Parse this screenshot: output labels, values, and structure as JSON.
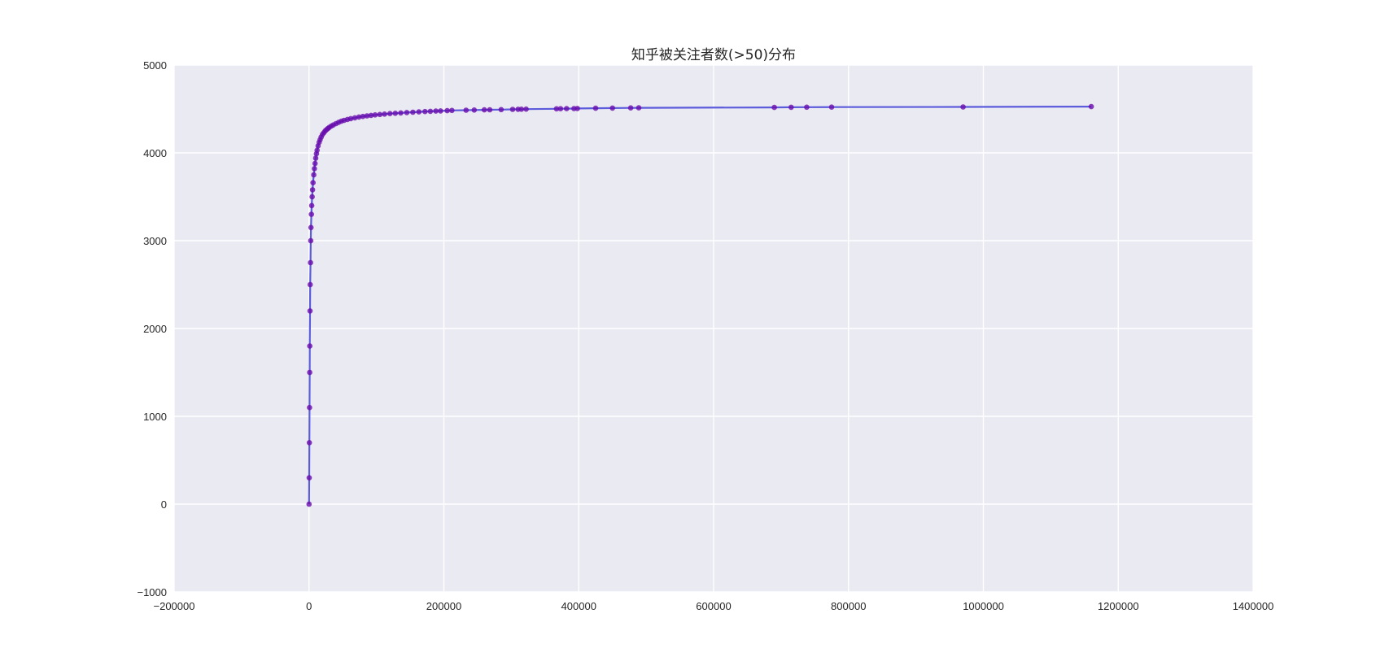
{
  "chart_data": {
    "type": "line",
    "title": "知乎被关注者数(>50)分布",
    "xlabel": "",
    "ylabel": "",
    "xlim": [
      -200000,
      1400000
    ],
    "ylim": [
      -1000,
      5000
    ],
    "x_ticks": [
      -200000,
      0,
      200000,
      400000,
      600000,
      800000,
      1000000,
      1200000,
      1400000
    ],
    "y_ticks": [
      -1000,
      0,
      1000,
      2000,
      3000,
      4000,
      5000
    ],
    "x_tick_labels": [
      "−200000",
      "0",
      "200000",
      "400000",
      "600000",
      "800000",
      "1000000",
      "1200000",
      "1400000"
    ],
    "y_tick_labels": [
      "−1000",
      "0",
      "1000",
      "2000",
      "3000",
      "4000",
      "5000"
    ],
    "grid": true,
    "background": "#eaeaf2",
    "grid_color": "#ffffff",
    "line_color": "#5b5bdc",
    "marker_color": "#6a0dad",
    "series": [
      {
        "x": [
          50,
          300,
          600,
          800,
          1000,
          1200,
          1500,
          1800,
          2200,
          2600,
          3000,
          3500,
          4000,
          4600,
          5300,
          6000,
          7000,
          8000,
          9000,
          10000,
          11000,
          12000,
          13500,
          15000,
          16500,
          18000,
          20000,
          22000,
          24000,
          26000,
          28000,
          30000,
          33000,
          36000,
          40000,
          44000,
          48000,
          52000,
          57000,
          62000,
          68000,
          74000,
          80000,
          86000,
          92000,
          98000,
          105000,
          112000,
          120000,
          128000,
          136000,
          145000,
          154000,
          163000,
          172000,
          180000,
          188000,
          195000,
          205000,
          212000,
          233000,
          245000,
          260000,
          268000,
          285000,
          302000,
          310000,
          315000,
          322000,
          367000,
          373000,
          382000,
          393000,
          398000,
          425000,
          450000,
          477000,
          489000,
          690000,
          715000,
          738000,
          775000,
          970000,
          1160000
        ],
        "y": [
          0,
          300,
          700,
          1100,
          1500,
          1800,
          2200,
          2500,
          2750,
          3000,
          3150,
          3300,
          3400,
          3500,
          3580,
          3660,
          3750,
          3820,
          3880,
          3940,
          3990,
          4030,
          4080,
          4120,
          4150,
          4180,
          4210,
          4230,
          4250,
          4265,
          4278,
          4290,
          4305,
          4318,
          4333,
          4348,
          4360,
          4370,
          4381,
          4390,
          4399,
          4408,
          4415,
          4421,
          4427,
          4432,
          4437,
          4442,
          4447,
          4451,
          4455,
          4459,
          4463,
          4467,
          4470,
          4473,
          4476,
          4478,
          4481,
          4483,
          4486,
          4488,
          4490,
          4491,
          4493,
          4495,
          4496,
          4497,
          4498,
          4502,
          4503,
          4504,
          4505,
          4506,
          4508,
          4510,
          4512,
          4513,
          4518,
          4519,
          4520,
          4521,
          4523,
          4527
        ]
      }
    ]
  }
}
